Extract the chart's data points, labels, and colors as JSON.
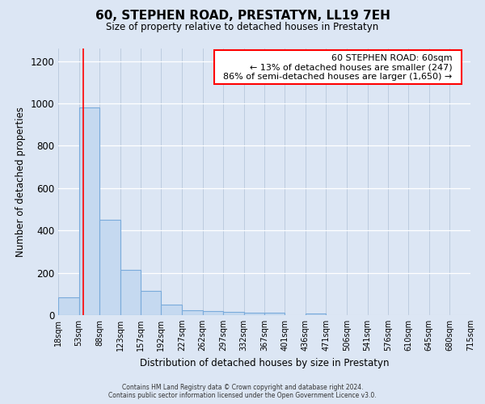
{
  "title": "60, STEPHEN ROAD, PRESTATYN, LL19 7EH",
  "subtitle": "Size of property relative to detached houses in Prestatyn",
  "xlabel": "Distribution of detached houses by size in Prestatyn",
  "ylabel": "Number of detached properties",
  "bar_edges": [
    18,
    53,
    88,
    123,
    157,
    192,
    227,
    262,
    297,
    332,
    367,
    401,
    436,
    471,
    506,
    541,
    576,
    610,
    645,
    680,
    715
  ],
  "bar_heights": [
    85,
    980,
    450,
    215,
    115,
    50,
    22,
    18,
    15,
    12,
    10,
    0,
    8,
    0,
    0,
    0,
    0,
    0,
    0,
    0
  ],
  "bar_color": "#c5d9f0",
  "bar_edge_color": "#7aabdb",
  "tick_labels": [
    "18sqm",
    "53sqm",
    "88sqm",
    "123sqm",
    "157sqm",
    "192sqm",
    "227sqm",
    "262sqm",
    "297sqm",
    "332sqm",
    "367sqm",
    "401sqm",
    "436sqm",
    "471sqm",
    "506sqm",
    "541sqm",
    "576sqm",
    "610sqm",
    "645sqm",
    "680sqm",
    "715sqm"
  ],
  "ylim": [
    0,
    1260
  ],
  "yticks": [
    0,
    200,
    400,
    600,
    800,
    1000,
    1200
  ],
  "red_line_x": 60,
  "annotation_title": "60 STEPHEN ROAD: 60sqm",
  "annotation_line1": "← 13% of detached houses are smaller (247)",
  "annotation_line2": "86% of semi-detached houses are larger (1,650) →",
  "background_color": "#dce6f4",
  "plot_bg_color": "#dce6f4",
  "footer_line1": "Contains HM Land Registry data © Crown copyright and database right 2024.",
  "footer_line2": "Contains public sector information licensed under the Open Government Licence v3.0."
}
